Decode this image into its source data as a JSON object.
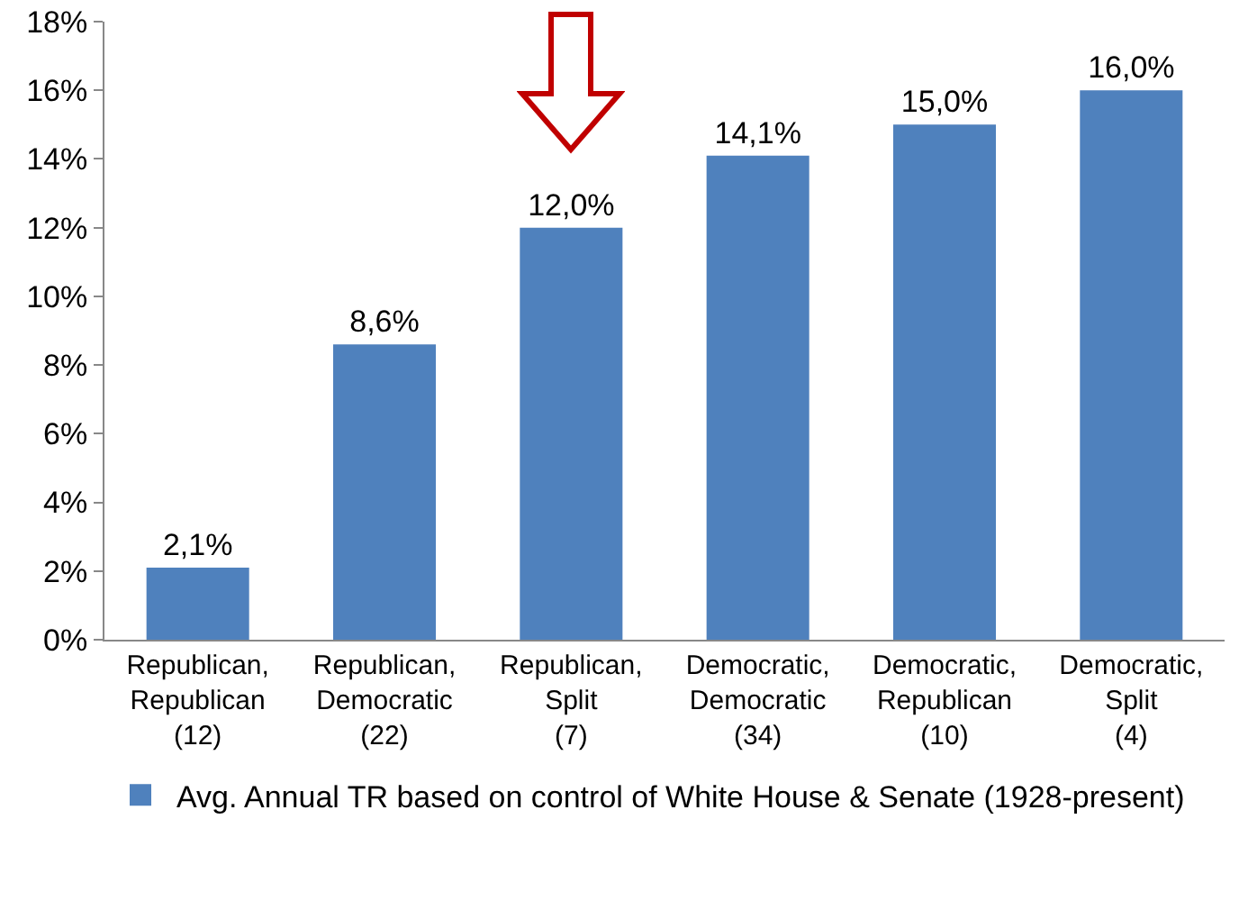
{
  "chart_data": {
    "type": "bar",
    "categories": [
      "Republican,\nRepublican\n(12)",
      "Republican,\nDemocratic\n(22)",
      "Republican,\nSplit\n(7)",
      "Democratic,\nDemocratic\n(34)",
      "Democratic,\nRepublican\n(10)",
      "Democratic,\nSplit\n(4)"
    ],
    "series": [
      {
        "name": "Avg. Annual TR based on control of White House & Senate (1928-present)",
        "color": "#4f81bd",
        "values": [
          2.1,
          8.6,
          12.0,
          14.1,
          15.0,
          16.0
        ],
        "value_labels": [
          "2,1%",
          "8,6%",
          "12,0%",
          "14,1%",
          "15,0%",
          "16,0%"
        ]
      }
    ],
    "ylim": [
      0,
      18
    ],
    "yticks": [
      {
        "value": 0,
        "label": "0%"
      },
      {
        "value": 2,
        "label": "2%"
      },
      {
        "value": 4,
        "label": "4%"
      },
      {
        "value": 6,
        "label": "6%"
      },
      {
        "value": 8,
        "label": "8%"
      },
      {
        "value": 10,
        "label": "10%"
      },
      {
        "value": 12,
        "label": "12%"
      },
      {
        "value": 14,
        "label": "14%"
      },
      {
        "value": 16,
        "label": "16%"
      },
      {
        "value": 18,
        "label": "18%"
      }
    ],
    "grid": false,
    "legend": "bottom left"
  }
}
